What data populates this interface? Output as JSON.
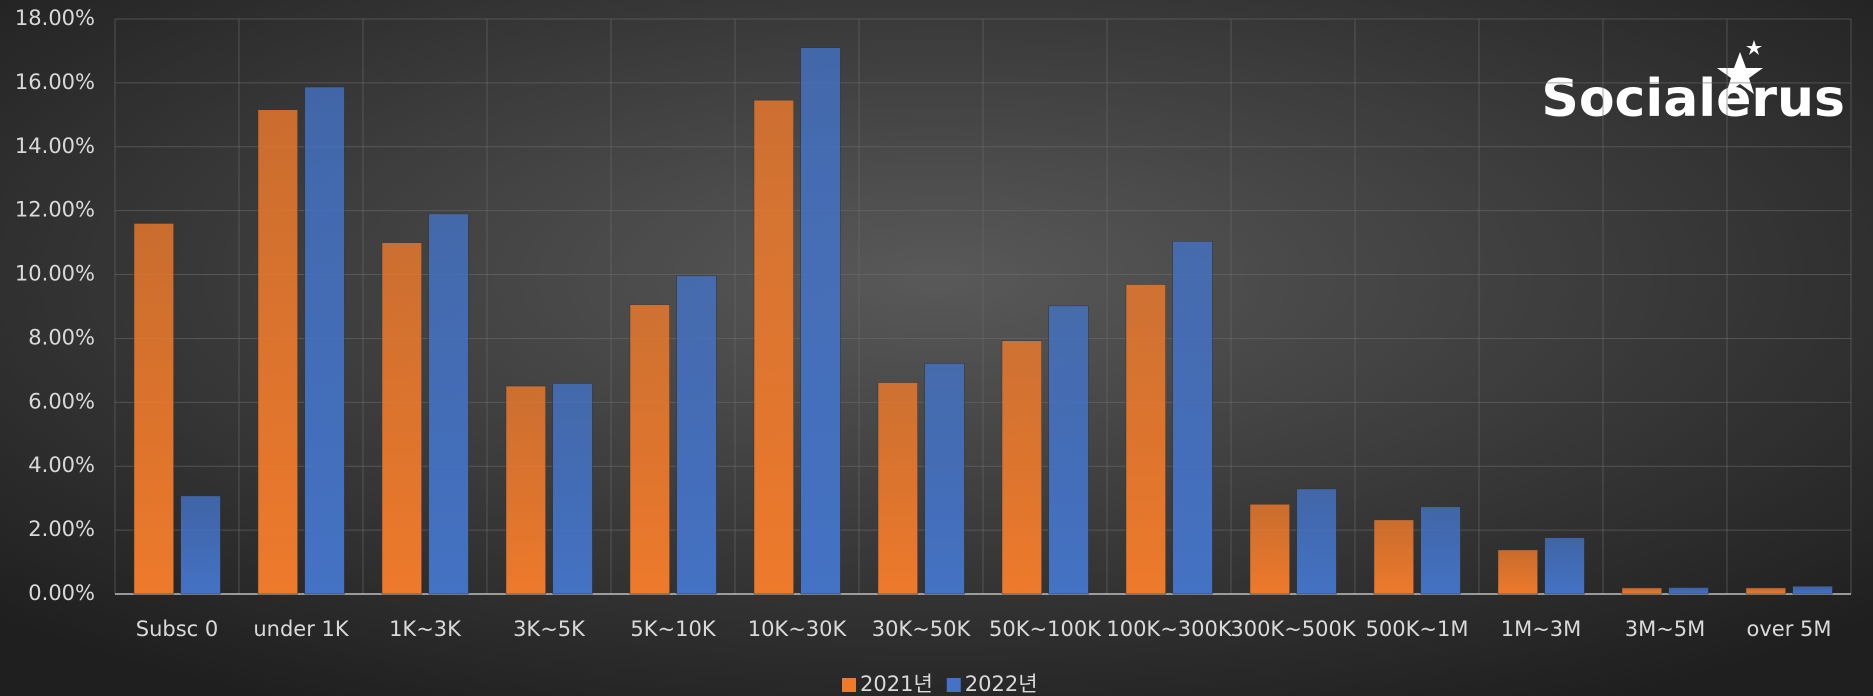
{
  "chart_data": {
    "type": "bar",
    "watermark": "Socialerus",
    "categories": [
      "Subsc 0",
      "under 1K",
      "1K~3K",
      "3K~5K",
      "5K~10K",
      "10K~30K",
      "30K~50K",
      "50K~100K",
      "100K~300K",
      "300K~500K",
      "500K~1M",
      "1M~3M",
      "3M~5M",
      "over 5M"
    ],
    "series": [
      {
        "name": "2021년",
        "color": "#ee7a2c",
        "values": [
          11.6,
          15.16,
          11.0,
          6.51,
          9.06,
          15.46,
          6.62,
          7.93,
          9.69,
          2.81,
          2.32,
          1.38,
          0.19,
          0.19
        ]
      },
      {
        "name": "2022년",
        "color": "#4472c4",
        "values": [
          3.07,
          15.87,
          11.9,
          6.59,
          9.96,
          17.1,
          7.22,
          9.02,
          11.04,
          3.29,
          2.73,
          1.76,
          0.2,
          0.24
        ]
      }
    ],
    "ylim": [
      0,
      18
    ],
    "yticks": [
      {
        "value": 0,
        "label": "0.00%"
      },
      {
        "value": 2,
        "label": "2.00%"
      },
      {
        "value": 4,
        "label": "4.00%"
      },
      {
        "value": 6,
        "label": "6.00%"
      },
      {
        "value": 8,
        "label": "8.00%"
      },
      {
        "value": 10,
        "label": "10.00%"
      },
      {
        "value": 12,
        "label": "12.00%"
      },
      {
        "value": 14,
        "label": "14.00%"
      },
      {
        "value": 16,
        "label": "16.00%"
      },
      {
        "value": 18,
        "label": "18.00%"
      }
    ],
    "grid": true,
    "legend": "bottom"
  }
}
